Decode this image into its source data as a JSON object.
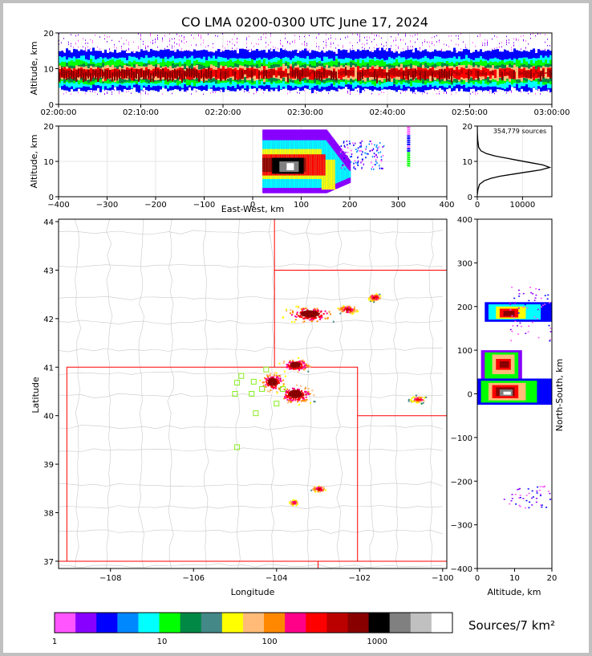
{
  "chart_data": [
    {
      "type": "heatmap",
      "panel": "altitude-time",
      "title": "CO LMA 0200-0300 UTC June 17, 2024",
      "ylabel": "Altitude, km",
      "ylim": [
        0,
        20
      ],
      "x_ticks": [
        "02:00:00",
        "02:10:00",
        "02:20:00",
        "02:30:00",
        "02:40:00",
        "02:50:00",
        "03:00:00"
      ],
      "y_ticks": [
        "0",
        "10",
        "20"
      ],
      "grid": true
    },
    {
      "type": "heatmap",
      "panel": "east-west-altitude",
      "xlabel": "East-West, km",
      "ylabel": "Altitude, km",
      "xlim": [
        -400,
        400
      ],
      "ylim": [
        0,
        20
      ],
      "x_ticks": [
        "−400",
        "−300",
        "−200",
        "−100",
        "0",
        "100",
        "200",
        "300",
        "400"
      ],
      "y_ticks": [
        "0",
        "10",
        "20"
      ],
      "grid": true
    },
    {
      "type": "line",
      "panel": "altitude-histogram",
      "annotation": "354,779 sources",
      "xlim": [
        0,
        16500
      ],
      "ylim": [
        0,
        20
      ],
      "x_ticks": [
        "0",
        "10000"
      ],
      "y_ticks": [
        "0",
        "10",
        "20"
      ],
      "series": [
        {
          "points": [
            [
              0,
              0.5
            ],
            [
              150,
              2
            ],
            [
              500,
              3.5
            ],
            [
              1500,
              4.5
            ],
            [
              3000,
              5.2
            ],
            [
              5000,
              5.8
            ],
            [
              8000,
              6.4
            ],
            [
              11000,
              7.0
            ],
            [
              14000,
              7.6
            ],
            [
              16000,
              8.3
            ],
            [
              14500,
              9.0
            ],
            [
              12000,
              9.6
            ],
            [
              9000,
              10.3
            ],
            [
              6500,
              10.9
            ],
            [
              4000,
              11.5
            ],
            [
              2000,
              12.2
            ],
            [
              800,
              13.0
            ],
            [
              300,
              14.0
            ],
            [
              100,
              16.0
            ],
            [
              20,
              18.0
            ],
            [
              0,
              20
            ]
          ]
        }
      ]
    },
    {
      "type": "heatmap",
      "panel": "plan-view",
      "xlabel": "Longitude",
      "ylabel": "Latitude",
      "xlim": [
        -109.25,
        -99.9
      ],
      "ylim": [
        36.85,
        44.05
      ],
      "x_ticks": [
        "−108",
        "−106",
        "−104",
        "−102",
        "−100"
      ],
      "y_ticks": [
        "37",
        "38",
        "39",
        "40",
        "41",
        "42",
        "43",
        "44"
      ],
      "stations": [
        [
          -104.85,
          40.82
        ],
        [
          -104.95,
          40.68
        ],
        [
          -105.0,
          40.45
        ],
        [
          -104.6,
          40.45
        ],
        [
          -104.55,
          40.7
        ],
        [
          -104.25,
          40.95
        ],
        [
          -104.35,
          40.55
        ],
        [
          -104.5,
          40.05
        ],
        [
          -104.0,
          40.25
        ],
        [
          -104.95,
          39.35
        ],
        [
          -103.85,
          40.55
        ]
      ],
      "cells": [
        {
          "lon": -103.2,
          "lat": 42.1,
          "dlon": 0.45,
          "dlat": 0.12,
          "intensity": 1.0
        },
        {
          "lon": -102.3,
          "lat": 42.2,
          "dlon": 0.18,
          "dlat": 0.07,
          "intensity": 0.55
        },
        {
          "lon": -101.65,
          "lat": 42.45,
          "dlon": 0.12,
          "dlat": 0.06,
          "intensity": 0.5
        },
        {
          "lon": -103.55,
          "lat": 41.05,
          "dlon": 0.25,
          "dlat": 0.1,
          "intensity": 0.9
        },
        {
          "lon": -104.1,
          "lat": 40.7,
          "dlon": 0.22,
          "dlat": 0.14,
          "intensity": 0.85
        },
        {
          "lon": -103.55,
          "lat": 40.45,
          "dlon": 0.32,
          "dlat": 0.14,
          "intensity": 1.0
        },
        {
          "lon": -103.0,
          "lat": 38.5,
          "dlon": 0.12,
          "dlat": 0.05,
          "intensity": 0.5
        },
        {
          "lon": -103.6,
          "lat": 38.22,
          "dlon": 0.1,
          "dlat": 0.05,
          "intensity": 0.45
        },
        {
          "lon": -100.6,
          "lat": 40.35,
          "dlon": 0.18,
          "dlat": 0.06,
          "intensity": 0.45
        }
      ]
    },
    {
      "type": "heatmap",
      "panel": "north-south-altitude",
      "xlabel": "Altitude, km",
      "ylabel": "North-South, km",
      "xlim": [
        0,
        20
      ],
      "ylim": [
        -400,
        400
      ],
      "x_ticks": [
        "0",
        "10",
        "20"
      ],
      "y_ticks": [
        "−400",
        "−300",
        "−200",
        "−100",
        "0",
        "100",
        "200",
        "300",
        "400"
      ]
    }
  ],
  "colorbar": {
    "label": "Sources/7 km²",
    "ticks": [
      "1",
      "10",
      "100",
      "1000"
    ],
    "colors": [
      "#ff55ff",
      "#8800ff",
      "#0000ff",
      "#0088ff",
      "#00ffff",
      "#00ff00",
      "#008844",
      "#448888",
      "#ffff00",
      "#ffbb77",
      "#ff8800",
      "#ff0088",
      "#ff0000",
      "#bb0000",
      "#880000",
      "#000000",
      "#808080",
      "#c0c0c0",
      "#ffffff"
    ]
  }
}
